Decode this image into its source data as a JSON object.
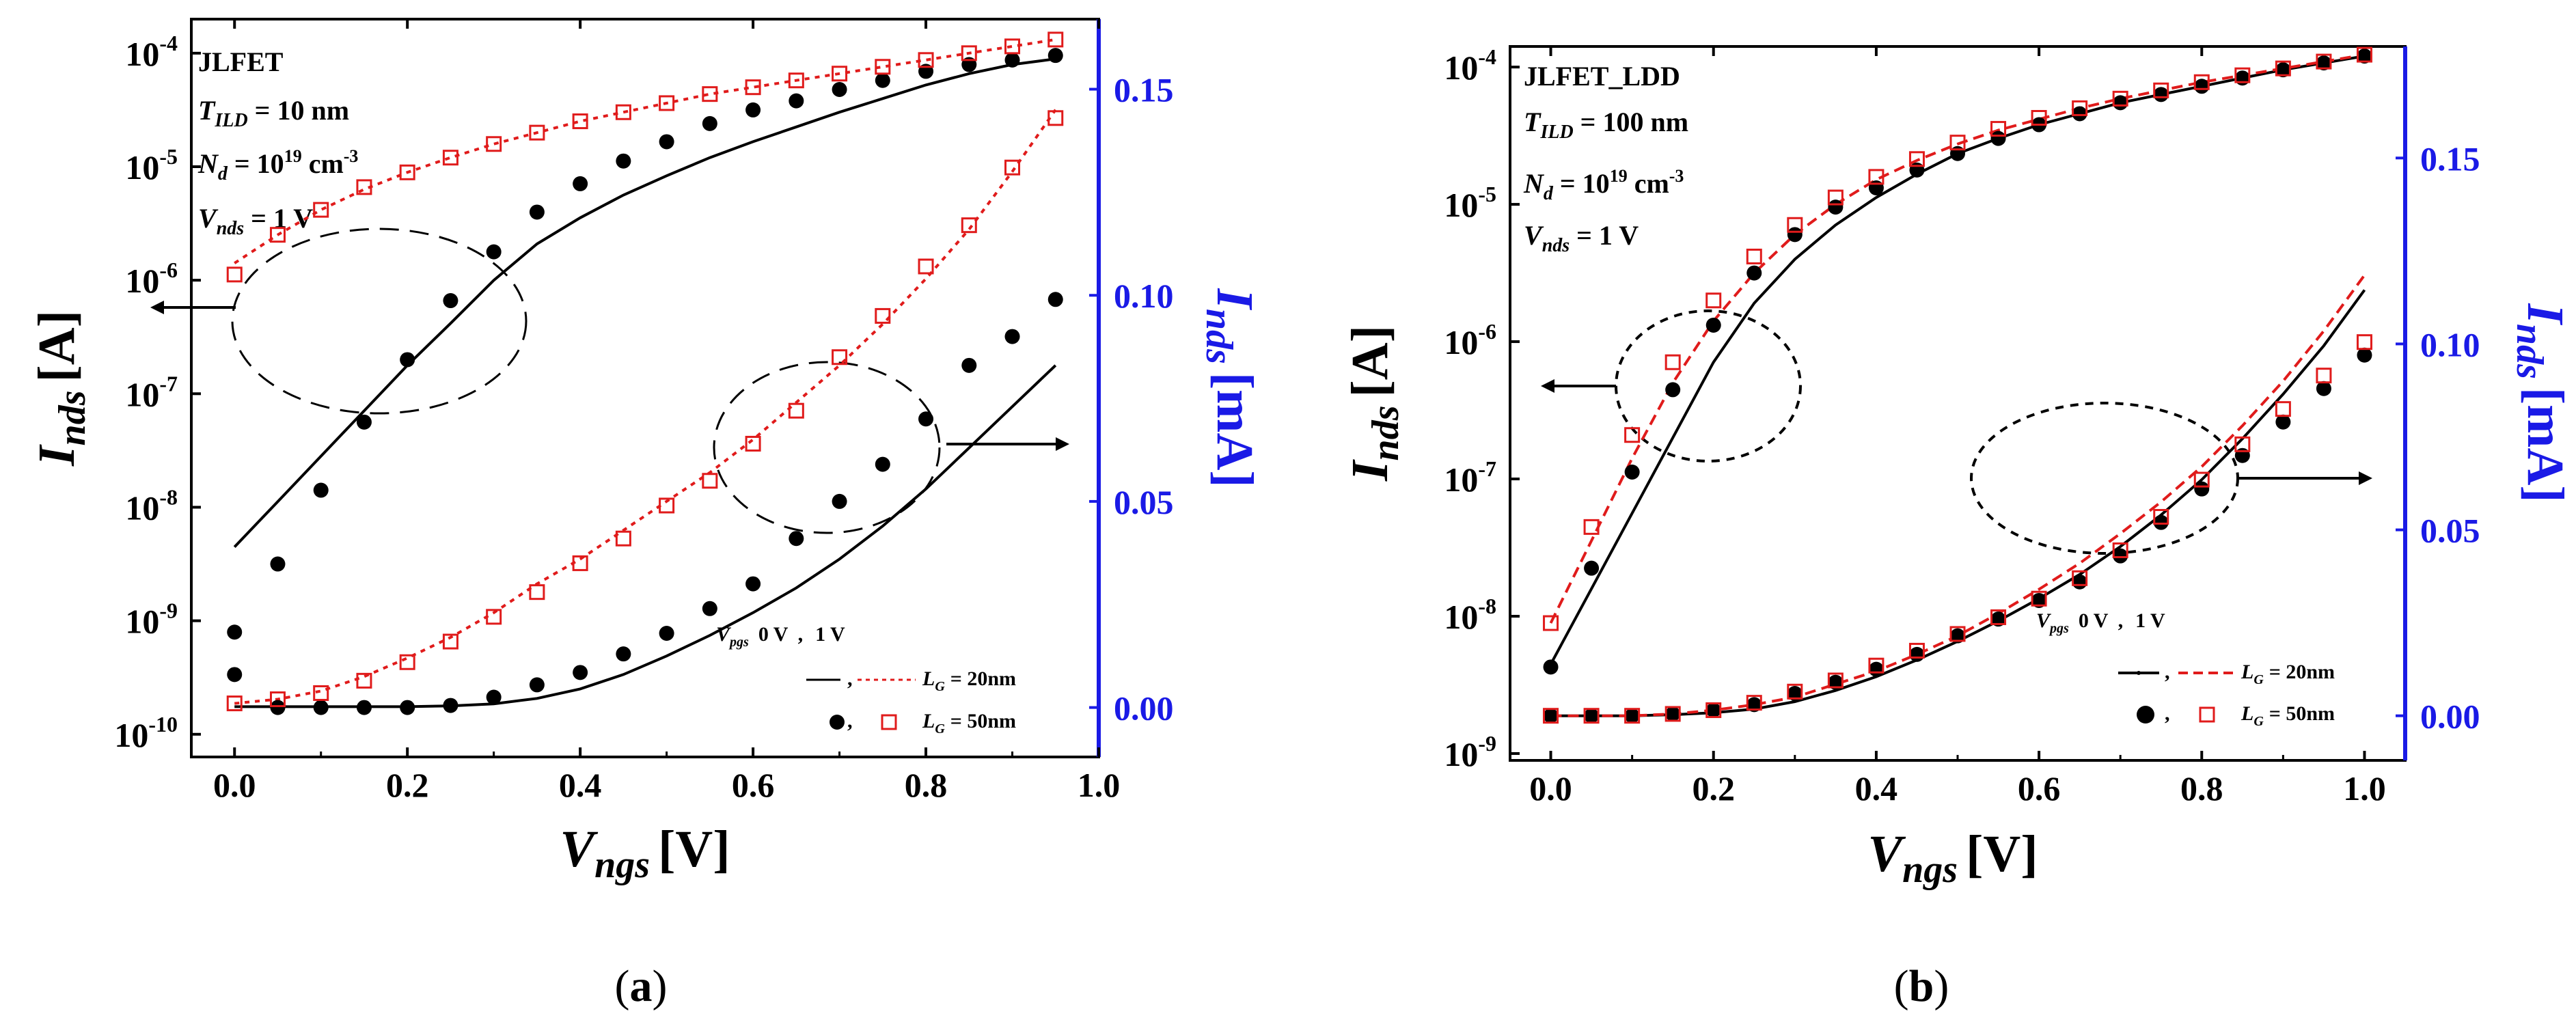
{
  "colors": {
    "axis": "#000000",
    "right_axis": "#1a1ae6",
    "lg20": "#e01b1b",
    "solid": "#000000"
  },
  "caption_parens": [
    "(",
    ")"
  ],
  "chart_data": [
    {
      "panel_label": "a",
      "type": "line",
      "title": "",
      "xlabel": {
        "main": "V",
        "sub": "ngs",
        "unit": "[V]"
      },
      "ylabel": {
        "main": "I",
        "sub": "nds",
        "unit": "[A]"
      },
      "y2label": {
        "main": "I",
        "sub": "nds",
        "unit": "[mA]"
      },
      "xlim": [
        -0.05,
        1.0
      ],
      "ylim_log": [
        -10.2,
        -3.7
      ],
      "y2lim": [
        -0.012,
        0.167
      ],
      "x_ticks": [
        "0.0",
        "0.2",
        "0.4",
        "0.6",
        "0.8",
        "1.0"
      ],
      "y_ticks": [
        {
          "base": "10",
          "exp": "-10"
        },
        {
          "base": "10",
          "exp": "-9"
        },
        {
          "base": "10",
          "exp": "-8"
        },
        {
          "base": "10",
          "exp": "-7"
        },
        {
          "base": "10",
          "exp": "-6"
        },
        {
          "base": "10",
          "exp": "-5"
        },
        {
          "base": "10",
          "exp": "-4"
        }
      ],
      "y2_ticks": [
        "0.00",
        "0.05",
        "0.10",
        "0.15"
      ],
      "annotation": {
        "name": "JLFET",
        "t_main": "T",
        "t_sub": "ILD",
        "t_val": " = 10 nm",
        "n_main": "N",
        "n_sub": "d",
        "n_val": " = 10",
        "n_exp": "19",
        "n_unit": " cm",
        "n_unit_exp": "-3",
        "v_main": "V",
        "v_sub": "nds",
        "v_val": " = 1 V"
      },
      "legend": {
        "vpgs_main": "V",
        "vpgs_sub": "pgs",
        "col0": "0 V",
        "sep": ",",
        "col1": "1 V",
        "row1_main": "L",
        "row1_sub": "G",
        "row1_val": "= 20nm",
        "row2_main": "L",
        "row2_sub": "G",
        "row2_val": "= 50nm"
      },
      "series": [
        {
          "name": "LG=20nm, Vpgs=0V, log",
          "axis": "left",
          "style": "solid",
          "x": [
            0.0,
            0.05,
            0.1,
            0.15,
            0.2,
            0.25,
            0.3,
            0.35,
            0.4,
            0.45,
            0.5,
            0.55,
            0.6,
            0.65,
            0.7,
            0.75,
            0.8,
            0.85,
            0.9,
            0.95
          ],
          "y_log": [
            -8.35,
            -7.95,
            -7.55,
            -7.15,
            -6.75,
            -6.38,
            -6.0,
            -5.68,
            -5.45,
            -5.25,
            -5.08,
            -4.92,
            -4.78,
            -4.65,
            -4.52,
            -4.4,
            -4.28,
            -4.18,
            -4.1,
            -4.05
          ]
        },
        {
          "name": "LG=20nm, Vpgs=1V, log",
          "axis": "left",
          "style": "dotted",
          "x": [
            0.0,
            0.05,
            0.1,
            0.15,
            0.2,
            0.25,
            0.3,
            0.35,
            0.4,
            0.45,
            0.5,
            0.55,
            0.6,
            0.65,
            0.7,
            0.75,
            0.8,
            0.85,
            0.9,
            0.95
          ],
          "y_log": [
            -5.85,
            -5.6,
            -5.38,
            -5.2,
            -5.05,
            -4.92,
            -4.8,
            -4.7,
            -4.6,
            -4.52,
            -4.44,
            -4.36,
            -4.3,
            -4.24,
            -4.18,
            -4.12,
            -4.06,
            -4.0,
            -3.94,
            -3.88
          ]
        },
        {
          "name": "LG=50nm, Vpgs=0V, log",
          "axis": "left",
          "style": "filled",
          "x": [
            0.0,
            0.05,
            0.1,
            0.15,
            0.2,
            0.25,
            0.3,
            0.35,
            0.4,
            0.45,
            0.5,
            0.55,
            0.6,
            0.65,
            0.7,
            0.75,
            0.8,
            0.85,
            0.9,
            0.95
          ],
          "y_log": [
            -9.1,
            -8.5,
            -7.85,
            -7.25,
            -6.7,
            -6.18,
            -5.75,
            -5.4,
            -5.15,
            -4.95,
            -4.78,
            -4.62,
            -4.5,
            -4.42,
            -4.32,
            -4.24,
            -4.16,
            -4.1,
            -4.06,
            -4.02
          ]
        },
        {
          "name": "LG=50nm, Vpgs=1V, log",
          "axis": "left",
          "style": "open",
          "x": [
            0.0,
            0.05,
            0.1,
            0.15,
            0.2,
            0.25,
            0.3,
            0.35,
            0.4,
            0.45,
            0.5,
            0.55,
            0.6,
            0.65,
            0.7,
            0.75,
            0.8,
            0.85,
            0.9,
            0.95
          ],
          "y_log": [
            -5.95,
            -5.6,
            -5.38,
            -5.18,
            -5.05,
            -4.92,
            -4.8,
            -4.7,
            -4.6,
            -4.52,
            -4.44,
            -4.36,
            -4.3,
            -4.24,
            -4.18,
            -4.12,
            -4.06,
            -4.0,
            -3.94,
            -3.88
          ]
        },
        {
          "name": "LG=20nm, Vpgs=0V, linear",
          "axis": "right",
          "style": "solid",
          "x": [
            0.0,
            0.05,
            0.1,
            0.15,
            0.2,
            0.25,
            0.3,
            0.35,
            0.4,
            0.45,
            0.5,
            0.55,
            0.6,
            0.65,
            0.7,
            0.75,
            0.8,
            0.85,
            0.9,
            0.95
          ],
          "y": [
            0.0002,
            0.0002,
            0.0002,
            0.0002,
            0.0002,
            0.0004,
            0.0009,
            0.0022,
            0.0045,
            0.008,
            0.0125,
            0.0175,
            0.023,
            0.029,
            0.036,
            0.044,
            0.053,
            0.063,
            0.073,
            0.083
          ]
        },
        {
          "name": "LG=20nm, Vpgs=1V, linear",
          "axis": "right",
          "style": "dotted",
          "x": [
            0.0,
            0.05,
            0.1,
            0.15,
            0.2,
            0.25,
            0.3,
            0.35,
            0.4,
            0.45,
            0.5,
            0.55,
            0.6,
            0.65,
            0.7,
            0.75,
            0.8,
            0.85,
            0.9,
            0.95
          ],
          "y": [
            0.001,
            0.002,
            0.004,
            0.0075,
            0.012,
            0.017,
            0.023,
            0.03,
            0.036,
            0.043,
            0.05,
            0.057,
            0.065,
            0.074,
            0.083,
            0.093,
            0.104,
            0.116,
            0.13,
            0.145
          ]
        },
        {
          "name": "LG=50nm, Vpgs=0V, linear",
          "axis": "right",
          "style": "filled",
          "x": [
            0.0,
            0.05,
            0.1,
            0.15,
            0.2,
            0.25,
            0.3,
            0.35,
            0.4,
            0.45,
            0.5,
            0.55,
            0.6,
            0.65,
            0.7,
            0.75,
            0.8,
            0.85,
            0.9,
            0.95
          ],
          "y": [
            0.008,
            0.0,
            0.0,
            0.0,
            0.0,
            0.0005,
            0.0025,
            0.0055,
            0.0085,
            0.013,
            0.018,
            0.024,
            0.03,
            0.041,
            0.05,
            0.059,
            0.07,
            0.083,
            0.09,
            0.099
          ]
        },
        {
          "name": "LG=50nm, Vpgs=1V, linear",
          "axis": "right",
          "style": "open",
          "x": [
            0.0,
            0.05,
            0.1,
            0.15,
            0.2,
            0.25,
            0.3,
            0.35,
            0.4,
            0.45,
            0.5,
            0.55,
            0.6,
            0.65,
            0.7,
            0.75,
            0.8,
            0.85,
            0.9,
            0.95
          ],
          "y": [
            0.001,
            0.002,
            0.0035,
            0.0065,
            0.011,
            0.016,
            0.022,
            0.028,
            0.035,
            0.041,
            0.049,
            0.055,
            0.064,
            0.072,
            0.085,
            0.095,
            0.107,
            0.117,
            0.131,
            0.143
          ]
        }
      ]
    },
    {
      "panel_label": "b",
      "type": "line",
      "title": "",
      "xlabel": {
        "main": "V",
        "sub": "ngs",
        "unit": "[V]"
      },
      "ylabel": {
        "main": "I",
        "sub": "nds",
        "unit": "[A]"
      },
      "y2label": {
        "main": "I",
        "sub": "nds",
        "unit": "[mA]"
      },
      "xlim": [
        -0.05,
        1.05
      ],
      "ylim_log": [
        -9.05,
        -3.85
      ],
      "y2lim": [
        -0.012,
        0.18
      ],
      "x_ticks": [
        "0.0",
        "0.2",
        "0.4",
        "0.6",
        "0.8",
        "1.0"
      ],
      "y_ticks": [
        {
          "base": "10",
          "exp": "-9"
        },
        {
          "base": "10",
          "exp": "-8"
        },
        {
          "base": "10",
          "exp": "-7"
        },
        {
          "base": "10",
          "exp": "-6"
        },
        {
          "base": "10",
          "exp": "-5"
        },
        {
          "base": "10",
          "exp": "-4"
        }
      ],
      "y2_ticks": [
        "0.00",
        "0.05",
        "0.10",
        "0.15"
      ],
      "annotation": {
        "name": "JLFET_LDD",
        "t_main": "T",
        "t_sub": "ILD",
        "t_val": " = 100 nm",
        "n_main": "N",
        "n_sub": "d",
        "n_val": " = 10",
        "n_exp": "19",
        "n_unit": " cm",
        "n_unit_exp": "-3",
        "v_main": "V",
        "v_sub": "nds",
        "v_val": " = 1 V"
      },
      "legend": {
        "vpgs_main": "V",
        "vpgs_sub": "pgs",
        "col0": "0 V",
        "sep": ",",
        "col1": "1 V",
        "row1_main": "L",
        "row1_sub": "G",
        "row1_val": "= 20nm",
        "row2_main": "L",
        "row2_sub": "G",
        "row2_val": "= 50nm"
      },
      "series": [
        {
          "name": "LG=20nm, Vpgs=0V, log",
          "axis": "left",
          "style": "solid",
          "x": [
            0.0,
            0.05,
            0.1,
            0.15,
            0.2,
            0.25,
            0.3,
            0.35,
            0.4,
            0.45,
            0.5,
            0.55,
            0.6,
            0.65,
            0.7,
            0.75,
            0.8,
            0.85,
            0.9,
            0.95,
            1.0
          ],
          "y_log": [
            -8.35,
            -7.8,
            -7.25,
            -6.7,
            -6.15,
            -5.72,
            -5.4,
            -5.15,
            -4.95,
            -4.78,
            -4.63,
            -4.52,
            -4.42,
            -4.34,
            -4.26,
            -4.2,
            -4.14,
            -4.08,
            -4.02,
            -3.97,
            -3.92
          ]
        },
        {
          "name": "LG=20nm, Vpgs=1V, log",
          "axis": "left",
          "style": "dashed",
          "x": [
            0.0,
            0.05,
            0.1,
            0.15,
            0.2,
            0.25,
            0.3,
            0.35,
            0.4,
            0.45,
            0.5,
            0.55,
            0.6,
            0.65,
            0.7,
            0.75,
            0.8,
            0.85,
            0.9,
            0.95,
            1.0
          ],
          "y_log": [
            -8.05,
            -7.45,
            -6.85,
            -6.3,
            -5.85,
            -5.5,
            -5.22,
            -5.0,
            -4.82,
            -4.68,
            -4.56,
            -4.46,
            -4.38,
            -4.3,
            -4.23,
            -4.17,
            -4.11,
            -4.06,
            -4.01,
            -3.96,
            -3.91
          ]
        },
        {
          "name": "LG=50nm, Vpgs=0V, log",
          "axis": "left",
          "style": "filled",
          "x": [
            0.0,
            0.05,
            0.1,
            0.15,
            0.2,
            0.25,
            0.3,
            0.35,
            0.4,
            0.45,
            0.5,
            0.55,
            0.6,
            0.65,
            0.7,
            0.75,
            0.8,
            0.85,
            0.9,
            0.95,
            1.0
          ],
          "y_log": [
            -8.37,
            -7.65,
            -6.95,
            -6.35,
            -5.88,
            -5.5,
            -5.22,
            -5.02,
            -4.88,
            -4.75,
            -4.63,
            -4.52,
            -4.42,
            -4.34,
            -4.26,
            -4.2,
            -4.14,
            -4.08,
            -4.02,
            -3.97,
            -3.92
          ]
        },
        {
          "name": "LG=50nm, Vpgs=1V, log",
          "axis": "left",
          "style": "open",
          "x": [
            0.0,
            0.05,
            0.1,
            0.15,
            0.2,
            0.25,
            0.3,
            0.35,
            0.4,
            0.45,
            0.5,
            0.55,
            0.6,
            0.65,
            0.7,
            0.75,
            0.8,
            0.85,
            0.9,
            0.95,
            1.0
          ],
          "y_log": [
            -8.05,
            -7.35,
            -6.68,
            -6.15,
            -5.7,
            -5.38,
            -5.15,
            -4.95,
            -4.8,
            -4.67,
            -4.55,
            -4.45,
            -4.37,
            -4.3,
            -4.23,
            -4.17,
            -4.11,
            -4.06,
            -4.01,
            -3.96,
            -3.91
          ]
        },
        {
          "name": "LG=20nm, Vpgs=0V, linear",
          "axis": "right",
          "style": "solid",
          "x": [
            0.0,
            0.05,
            0.1,
            0.15,
            0.2,
            0.25,
            0.3,
            0.35,
            0.4,
            0.45,
            0.5,
            0.55,
            0.6,
            0.65,
            0.7,
            0.75,
            0.8,
            0.85,
            0.9,
            0.95,
            1.0
          ],
          "y": [
            0.0,
            0.0,
            0.0,
            0.0003,
            0.0008,
            0.0018,
            0.0038,
            0.0068,
            0.0105,
            0.015,
            0.02,
            0.0255,
            0.0315,
            0.038,
            0.0455,
            0.054,
            0.0635,
            0.0745,
            0.0865,
            0.0995,
            0.1145
          ]
        },
        {
          "name": "LG=20nm, Vpgs=1V, linear",
          "axis": "right",
          "style": "dashed",
          "x": [
            0.0,
            0.05,
            0.1,
            0.15,
            0.2,
            0.25,
            0.3,
            0.35,
            0.4,
            0.45,
            0.5,
            0.55,
            0.6,
            0.65,
            0.7,
            0.75,
            0.8,
            0.85,
            0.9,
            0.95,
            1.0
          ],
          "y": [
            0.0,
            0.0,
            0.0,
            0.0005,
            0.0015,
            0.003,
            0.005,
            0.0085,
            0.012,
            0.0165,
            0.0215,
            0.0275,
            0.034,
            0.041,
            0.049,
            0.0575,
            0.067,
            0.078,
            0.09,
            0.1035,
            0.1185
          ]
        },
        {
          "name": "LG=50nm, Vpgs=0V, linear",
          "axis": "right",
          "style": "filled",
          "x": [
            0.0,
            0.05,
            0.1,
            0.15,
            0.2,
            0.25,
            0.3,
            0.35,
            0.4,
            0.45,
            0.5,
            0.55,
            0.6,
            0.65,
            0.7,
            0.75,
            0.8,
            0.85,
            0.9,
            0.95,
            1.0
          ],
          "y": [
            0.0,
            0.0,
            0.0,
            0.0005,
            0.0015,
            0.003,
            0.006,
            0.009,
            0.0125,
            0.0165,
            0.0215,
            0.026,
            0.031,
            0.036,
            0.043,
            0.052,
            0.061,
            0.07,
            0.079,
            0.088,
            0.097
          ]
        },
        {
          "name": "LG=50nm, Vpgs=1V, linear",
          "axis": "right",
          "style": "open",
          "x": [
            0.0,
            0.05,
            0.1,
            0.15,
            0.2,
            0.25,
            0.3,
            0.35,
            0.4,
            0.45,
            0.5,
            0.55,
            0.6,
            0.65,
            0.7,
            0.75,
            0.8,
            0.85,
            0.9,
            0.95,
            1.0
          ],
          "y": [
            0.0,
            0.0,
            0.0,
            0.0005,
            0.0015,
            0.0035,
            0.0065,
            0.0095,
            0.0135,
            0.0175,
            0.022,
            0.0265,
            0.0315,
            0.037,
            0.0445,
            0.0535,
            0.0635,
            0.073,
            0.0825,
            0.0915,
            0.1005
          ]
        }
      ]
    }
  ]
}
